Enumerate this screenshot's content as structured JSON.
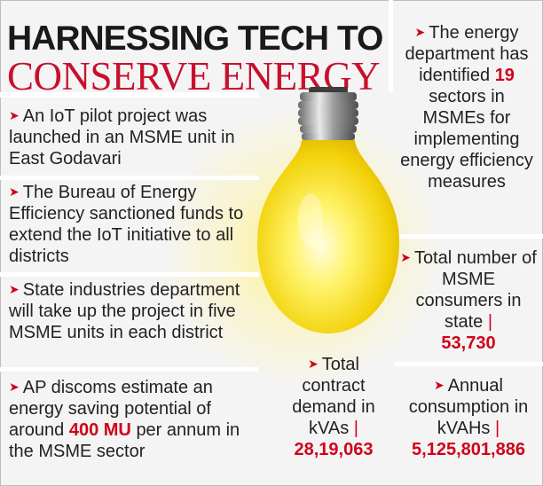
{
  "header": {
    "title_line1": "HARNESSING TECH TO",
    "title_line2": "CONSERVE ENERGY"
  },
  "left_points": [
    {
      "text": "An IoT pilot project was launched in an MSME unit in East Godavari"
    },
    {
      "text": "The Bureau of Energy Efficiency sanctioned funds to extend the IoT initiative to all districts"
    },
    {
      "text": "State industries department will take up the project in five MSME units in each district"
    },
    {
      "text_before": "AP discoms estimate an energy saving potential of around",
      "highlight": "400 MU",
      "text_after": "per annum in the MSME sector"
    }
  ],
  "right_top": {
    "text_before": "The energy department has identified",
    "highlight": "19",
    "text_after": "sectors in MSMEs for implementing energy efficiency measures"
  },
  "stats": {
    "consumers": {
      "label": "Total number of MSME consumers in state",
      "value": "53,730"
    },
    "contract_demand": {
      "label": "Total contract demand in kVAs",
      "value": "28,19,063"
    },
    "consumption": {
      "label": "Annual consumption in kVAHs",
      "value": "5,125,801,886"
    }
  },
  "colors": {
    "accent": "#d0021b",
    "bulb": "#f5d90a"
  },
  "icons": {
    "bullet": "arrow-icon",
    "illustration": "light-bulb-icon"
  }
}
